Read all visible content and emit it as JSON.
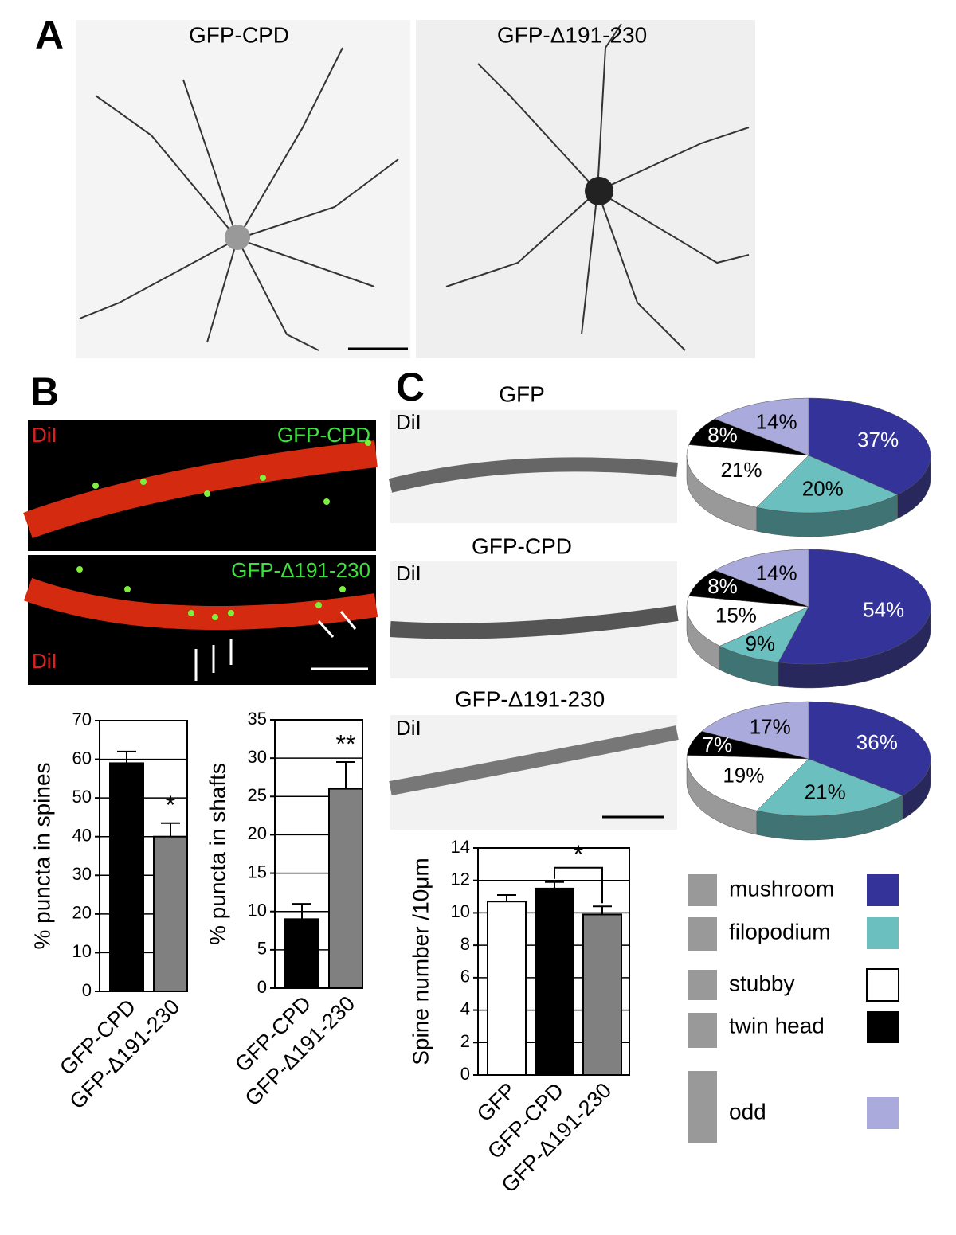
{
  "figure": {
    "panel_labels": [
      "A",
      "B",
      "C"
    ],
    "panel_a_titles": [
      "GFP-CPD",
      "GFP-Δ191-230"
    ],
    "panel_b_labels": {
      "top_left": "DiI",
      "top_right": "GFP-CPD",
      "bottom_right": "GFP-Δ191-230",
      "bottom_left": "DiI"
    },
    "panel_c_labels": [
      "DiI",
      "DiI",
      "DiI"
    ]
  },
  "chart_data": [
    {
      "type": "bar",
      "y_label": "% puncta in spines",
      "categories": [
        "GFP-CPD",
        "GFP-Δ191-230"
      ],
      "values": [
        59,
        40
      ],
      "errors": [
        3,
        3.5
      ],
      "colors": [
        "#000000",
        "#808080"
      ],
      "ylim": [
        0,
        70
      ],
      "yticks": [
        0,
        10,
        20,
        30,
        40,
        50,
        60,
        70
      ],
      "grid": true,
      "annotation": "*"
    },
    {
      "type": "bar",
      "y_label": "% puncta in shafts",
      "categories": [
        "GFP-CPD",
        "GFP-Δ191-230"
      ],
      "values": [
        9,
        26
      ],
      "errors": [
        2,
        3.5
      ],
      "colors": [
        "#000000",
        "#808080"
      ],
      "ylim": [
        0,
        35
      ],
      "yticks": [
        0,
        5,
        10,
        15,
        20,
        25,
        30,
        35
      ],
      "grid": true,
      "annotation": "**"
    },
    {
      "type": "bar",
      "y_label": "Spine number /10μm",
      "categories": [
        "GFP",
        "GFP-CPD",
        "GFP-Δ191-230"
      ],
      "values": [
        10.7,
        11.5,
        9.9
      ],
      "errors": [
        0.4,
        0.4,
        0.5
      ],
      "colors": [
        "#ffffff",
        "#000000",
        "#808080"
      ],
      "ylim": [
        0,
        14
      ],
      "yticks": [
        0,
        2,
        4,
        6,
        8,
        10,
        12,
        14
      ],
      "grid": true,
      "annotation": "*"
    },
    {
      "type": "pie",
      "title": "GFP",
      "categories": [
        "mushroom",
        "filopodium",
        "stubby",
        "twin head",
        "odd"
      ],
      "values": [
        37,
        20,
        21,
        8,
        14
      ],
      "value_labels": [
        "37%",
        "20%",
        "21%",
        "8%",
        "14%"
      ],
      "colors": [
        "#333399",
        "#6bbfbf",
        "#ffffff",
        "#000000",
        "#aaaadd"
      ]
    },
    {
      "type": "pie",
      "title": "GFP-CPD",
      "categories": [
        "mushroom",
        "filopodium",
        "stubby",
        "twin head",
        "odd"
      ],
      "values": [
        54,
        9,
        15,
        8,
        14
      ],
      "value_labels": [
        "54%",
        "9%",
        "15%",
        "8%",
        "14%"
      ],
      "colors": [
        "#333399",
        "#6bbfbf",
        "#ffffff",
        "#000000",
        "#aaaadd"
      ]
    },
    {
      "type": "pie",
      "title": "GFP-Δ191-230",
      "categories": [
        "mushroom",
        "filopodium",
        "stubby",
        "twin head",
        "odd"
      ],
      "values": [
        36,
        21,
        19,
        7,
        17
      ],
      "value_labels": [
        "36%",
        "21%",
        "19%",
        "7%",
        "17%"
      ],
      "colors": [
        "#333399",
        "#6bbfbf",
        "#ffffff",
        "#000000",
        "#aaaadd"
      ]
    }
  ]
}
